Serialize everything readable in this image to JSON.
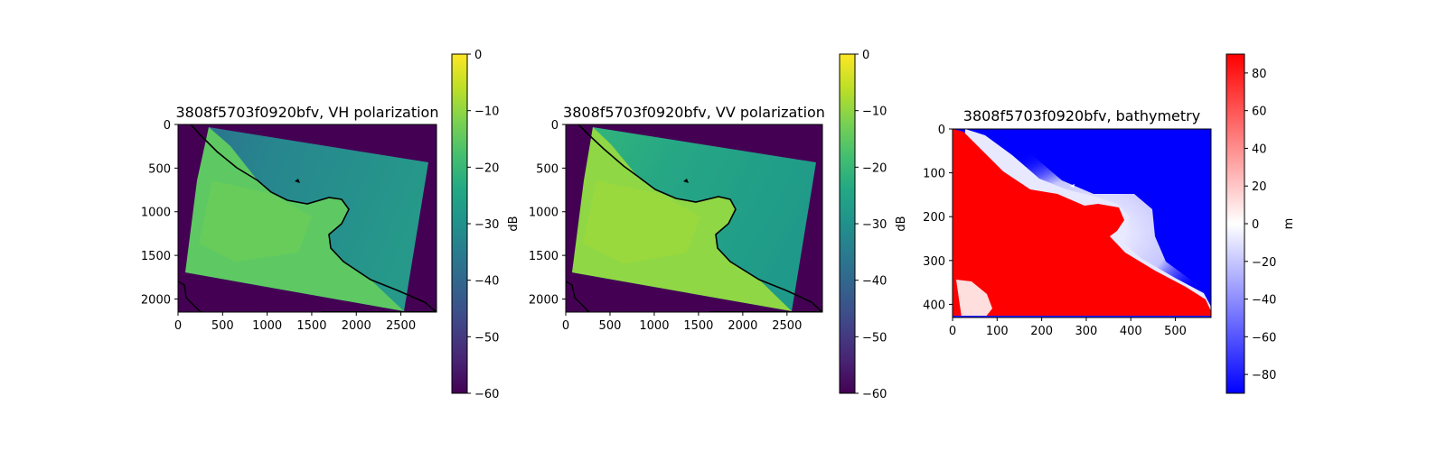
{
  "chart_data": [
    {
      "type": "heatmap",
      "title": "3808f5703f0920bfv, VH polarization",
      "xlim": [
        0,
        2900
      ],
      "ylim": [
        2150,
        0
      ],
      "xticks": [
        0,
        500,
        1000,
        1500,
        2000,
        2500
      ],
      "yticks": [
        0,
        500,
        1000,
        1500,
        2000
      ],
      "colormap": "viridis",
      "colorbar": {
        "label": "dB",
        "range": [
          -60,
          0
        ],
        "ticks": [
          "0",
          "−10",
          "−20",
          "−30",
          "−40",
          "−50",
          "−60"
        ]
      },
      "background_value": -60,
      "swath": [
        [
          350,
          50
        ],
        [
          2910,
          450
        ],
        [
          2560,
          2100
        ],
        [
          80,
          1700
        ]
      ],
      "coastline": true
    },
    {
      "type": "heatmap",
      "title": "3808f5703f0920bfv, VV polarization",
      "xlim": [
        0,
        2900
      ],
      "ylim": [
        2150,
        0
      ],
      "xticks": [
        0,
        500,
        1000,
        1500,
        2000,
        2500
      ],
      "yticks": [
        0,
        500,
        1000,
        1500,
        2000
      ],
      "colormap": "viridis",
      "colorbar": {
        "label": "dB",
        "range": [
          -60,
          0
        ],
        "ticks": [
          "0",
          "−10",
          "−20",
          "−30",
          "−40",
          "−50",
          "−60"
        ]
      },
      "background_value": -60,
      "swath": [
        [
          300,
          50
        ],
        [
          2820,
          450
        ],
        [
          2540,
          2100
        ],
        [
          80,
          1700
        ]
      ],
      "coastline": true
    },
    {
      "type": "heatmap",
      "title": "3808f5703f0920bfv, bathymetry",
      "xlim": [
        0,
        580
      ],
      "ylim": [
        430,
        0
      ],
      "xticks": [
        0,
        100,
        200,
        300,
        400,
        500
      ],
      "yticks": [
        0,
        100,
        200,
        300,
        400
      ],
      "colormap": "bwr",
      "colorbar": {
        "label": "m",
        "range": [
          -90,
          90
        ],
        "ticks": [
          "80",
          "60",
          "40",
          "20",
          "0",
          "−20",
          "−40",
          "−60",
          "−80"
        ]
      }
    }
  ]
}
